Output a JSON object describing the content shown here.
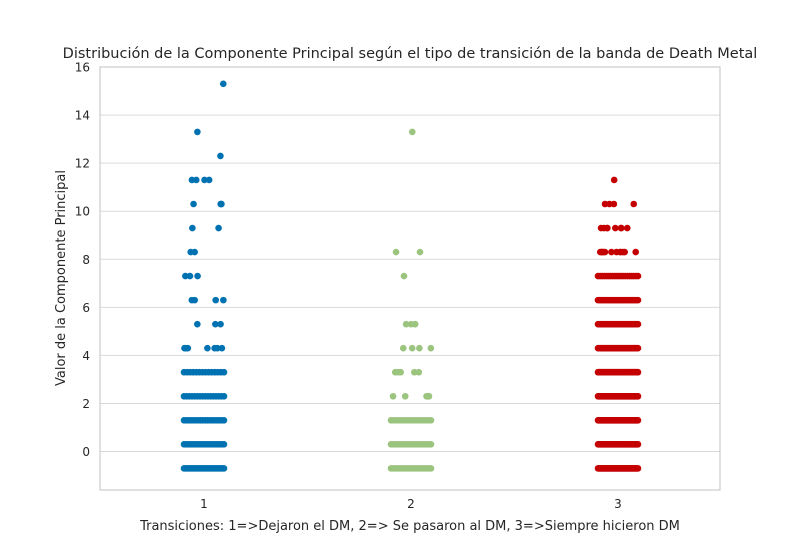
{
  "chart_data": {
    "type": "scatter",
    "subtype": "stripplot",
    "title": "Distribución de la Componente Principal según el tipo de transición de la banda de Death Metal",
    "xlabel": "Transiciones: 1=>Dejaron el DM, 2=> Se pasaron al DM, 3=>Siempre hicieron DM",
    "ylabel": "Valor de la Componente Principal",
    "categories": [
      "1",
      "2",
      "3"
    ],
    "ylim": [
      -1.6,
      16
    ],
    "yticks": [
      0,
      2,
      4,
      6,
      8,
      10,
      12,
      14,
      16
    ],
    "grid": true,
    "legend": "none",
    "series": [
      {
        "category": "1",
        "color": "#0072b2",
        "levels": [
          {
            "y": -0.7,
            "count": 40
          },
          {
            "y": 0.3,
            "count": 22
          },
          {
            "y": 1.3,
            "count": 18
          },
          {
            "y": 2.3,
            "count": 16
          },
          {
            "y": 3.3,
            "count": 14
          },
          {
            "y": 4.3,
            "count": 8
          },
          {
            "y": 5.3,
            "count": 3
          },
          {
            "y": 6.3,
            "count": 4
          },
          {
            "y": 7.3,
            "count": 3
          },
          {
            "y": 8.3,
            "count": 2
          },
          {
            "y": 9.3,
            "count": 2
          },
          {
            "y": 10.3,
            "count": 4
          },
          {
            "y": 11.3,
            "count": 4
          },
          {
            "y": 12.3,
            "count": 1
          },
          {
            "y": 13.3,
            "count": 1
          },
          {
            "y": 15.3,
            "count": 1
          }
        ]
      },
      {
        "category": "2",
        "color": "#9bc47f",
        "levels": [
          {
            "y": -0.7,
            "count": 30
          },
          {
            "y": 0.3,
            "count": 20
          },
          {
            "y": 1.3,
            "count": 16
          },
          {
            "y": 2.3,
            "count": 6
          },
          {
            "y": 3.3,
            "count": 5
          },
          {
            "y": 4.3,
            "count": 4
          },
          {
            "y": 5.3,
            "count": 4
          },
          {
            "y": 7.3,
            "count": 1
          },
          {
            "y": 8.3,
            "count": 2
          },
          {
            "y": 13.3,
            "count": 1
          }
        ]
      },
      {
        "category": "3",
        "color": "#c40000",
        "levels": [
          {
            "y": -0.7,
            "count": 80
          },
          {
            "y": 0.3,
            "count": 80
          },
          {
            "y": 1.3,
            "count": 80
          },
          {
            "y": 2.3,
            "count": 80
          },
          {
            "y": 3.3,
            "count": 80
          },
          {
            "y": 4.3,
            "count": 60
          },
          {
            "y": 5.3,
            "count": 40
          },
          {
            "y": 6.3,
            "count": 30
          },
          {
            "y": 7.3,
            "count": 20
          },
          {
            "y": 8.3,
            "count": 12
          },
          {
            "y": 9.3,
            "count": 8
          },
          {
            "y": 10.3,
            "count": 4
          },
          {
            "y": 11.3,
            "count": 1
          }
        ]
      }
    ]
  }
}
